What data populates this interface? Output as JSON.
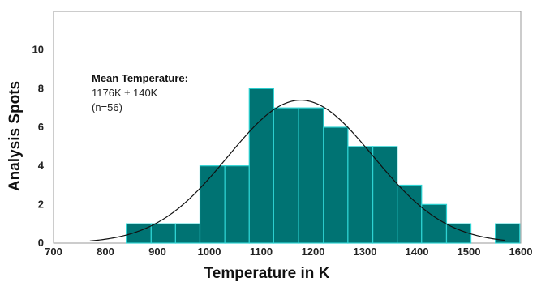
{
  "chart_data": {
    "type": "bar",
    "title": "",
    "xlabel": "Temperature in K",
    "ylabel": "Analysis Spots",
    "xlim": [
      700,
      1600
    ],
    "ylim": [
      0,
      12
    ],
    "xticks": [
      700,
      800,
      900,
      1000,
      1100,
      1200,
      1300,
      1400,
      1500,
      1600
    ],
    "yticks": [
      0,
      2,
      4,
      6,
      8,
      10
    ],
    "grid": false,
    "colors": {
      "bar_fill": "#007373",
      "bar_edge": "#2ed3d3",
      "curve": "#111111"
    },
    "bins": [
      {
        "x0": 840,
        "x1": 888,
        "count": 1
      },
      {
        "x0": 888,
        "x1": 935,
        "count": 1
      },
      {
        "x0": 935,
        "x1": 982,
        "count": 1
      },
      {
        "x0": 982,
        "x1": 1030,
        "count": 4
      },
      {
        "x0": 1030,
        "x1": 1077,
        "count": 4
      },
      {
        "x0": 1077,
        "x1": 1124,
        "count": 8
      },
      {
        "x0": 1124,
        "x1": 1172,
        "count": 7
      },
      {
        "x0": 1172,
        "x1": 1220,
        "count": 7
      },
      {
        "x0": 1220,
        "x1": 1267,
        "count": 6
      },
      {
        "x0": 1267,
        "x1": 1315,
        "count": 5
      },
      {
        "x0": 1315,
        "x1": 1362,
        "count": 5
      },
      {
        "x0": 1362,
        "x1": 1409,
        "count": 3
      },
      {
        "x0": 1409,
        "x1": 1457,
        "count": 2
      },
      {
        "x0": 1457,
        "x1": 1504,
        "count": 1
      },
      {
        "x0": 1504,
        "x1": 1551,
        "count": 0
      },
      {
        "x0": 1551,
        "x1": 1598,
        "count": 1
      }
    ],
    "fit_curve": {
      "type": "normal",
      "mean": 1176,
      "sd": 140,
      "peak": 7.4,
      "x_range": [
        770,
        1570
      ]
    },
    "annotation": {
      "heading": "Mean Temperature:",
      "value": "1176K ± 140K",
      "n": "(n=56)"
    }
  }
}
